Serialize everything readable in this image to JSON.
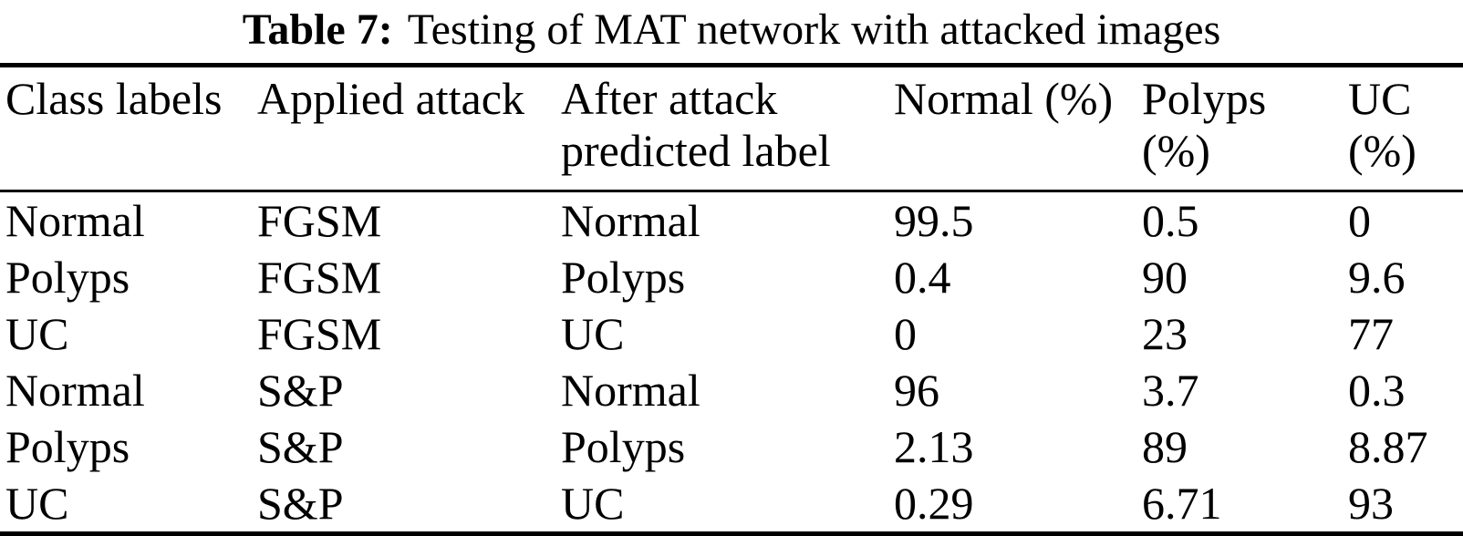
{
  "caption": {
    "label": "Table 7:",
    "text": "Testing of MAT network with attacked images"
  },
  "table": {
    "columns": [
      {
        "line1": "Class labels",
        "line2": ""
      },
      {
        "line1": "Applied attack",
        "line2": ""
      },
      {
        "line1": "After attack",
        "line2": "predicted label"
      },
      {
        "line1": "Normal (%)",
        "line2": ""
      },
      {
        "line1": "Polyps",
        "line2": "(%)"
      },
      {
        "line1": "UC",
        "line2": "(%)"
      }
    ],
    "rows": [
      {
        "cells": [
          "Normal",
          "FGSM",
          "Normal",
          "99.5",
          "0.5",
          "0"
        ]
      },
      {
        "cells": [
          "Polyps",
          "FGSM",
          "Polyps",
          "0.4",
          "90",
          "9.6"
        ]
      },
      {
        "cells": [
          "UC",
          "FGSM",
          "UC",
          "0",
          "23",
          "77"
        ]
      },
      {
        "cells": [
          "Normal",
          "S&P",
          "Normal",
          "96",
          "3.7",
          "0.3"
        ]
      },
      {
        "cells": [
          "Polyps",
          "S&P",
          "Polyps",
          "2.13",
          "89",
          "8.87"
        ]
      },
      {
        "cells": [
          "UC",
          "S&P",
          "UC",
          "0.29",
          "6.71",
          "93"
        ]
      }
    ]
  },
  "colors": {
    "text": "#000000",
    "background": "#ffffff",
    "rule": "#000000"
  }
}
